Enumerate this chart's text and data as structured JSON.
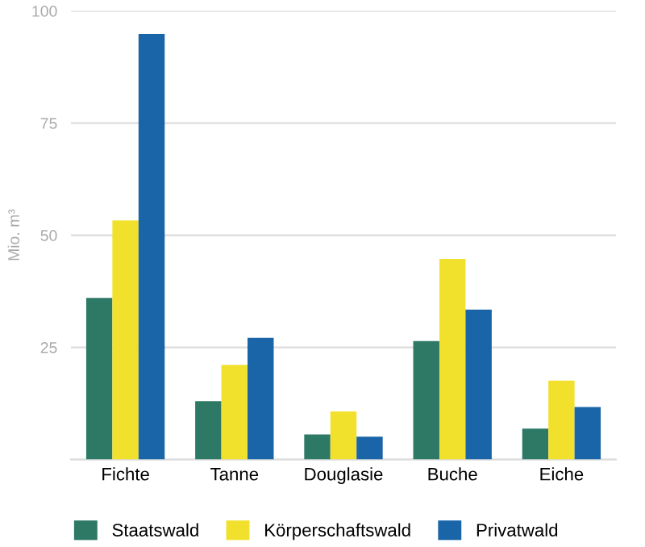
{
  "chart_data": {
    "type": "bar",
    "ylabel": "Mio. m³",
    "categories": [
      "Fichte",
      "Tanne",
      "Douglasie",
      "Buche",
      "Eiche"
    ],
    "series": [
      {
        "name": "Staatswald",
        "color": "#2e7866",
        "values": [
          36.0,
          13.0,
          5.6,
          26.4,
          6.9
        ]
      },
      {
        "name": "Körperschaftswald",
        "color": "#f2e12c",
        "values": [
          53.3,
          21.1,
          10.7,
          44.7,
          17.6
        ]
      },
      {
        "name": "Privatwald",
        "color": "#1a64a8",
        "values": [
          94.9,
          27.1,
          5.1,
          33.4,
          11.7
        ]
      }
    ],
    "ylim": [
      0,
      100
    ],
    "yticks": [
      {
        "value": 0,
        "label": null
      },
      25,
      50,
      75,
      100
    ],
    "grid": "y",
    "legend": "bottom"
  }
}
